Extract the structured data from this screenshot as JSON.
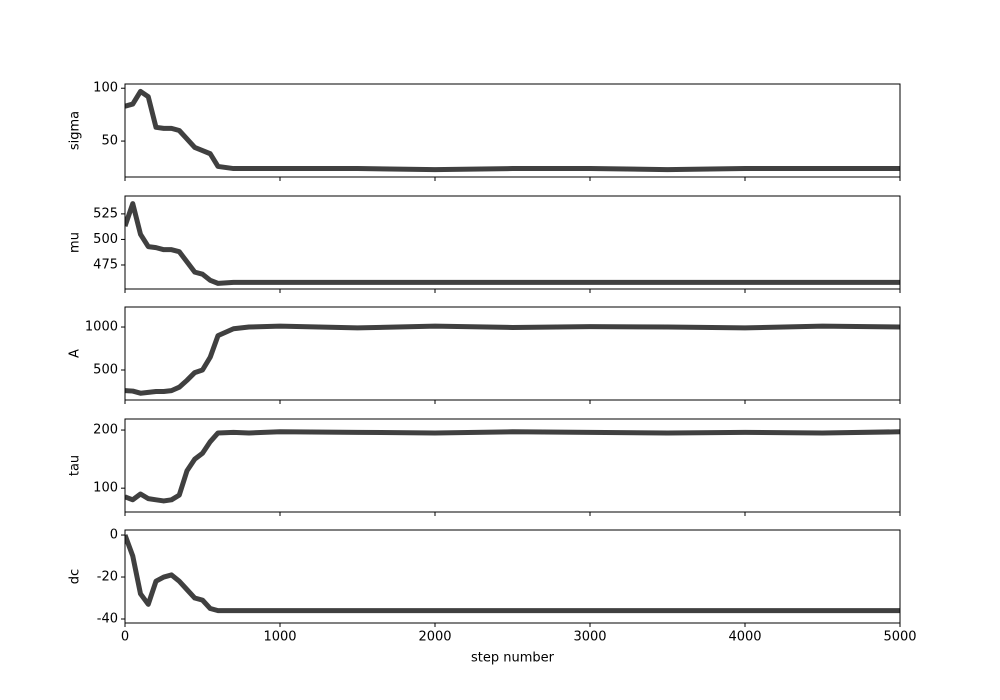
{
  "chart_data": [
    {
      "type": "line",
      "ylabel": "sigma",
      "color": "#000000",
      "xlim": [
        0,
        5000
      ],
      "ylim": [
        16,
        104
      ],
      "yticks": [
        50,
        100
      ],
      "x": [
        0,
        50,
        100,
        150,
        200,
        250,
        300,
        350,
        400,
        450,
        500,
        550,
        600,
        700,
        800,
        1000,
        1500,
        2000,
        2500,
        3000,
        3500,
        4000,
        4500,
        5000
      ],
      "values": [
        83,
        85,
        97,
        92,
        63,
        62,
        62,
        60,
        52,
        44,
        41,
        38,
        26,
        24,
        24,
        24,
        24,
        23,
        24,
        24,
        23,
        24,
        24,
        24
      ]
    },
    {
      "type": "line",
      "ylabel": "mu",
      "color": "#000000",
      "xlim": [
        0,
        5000
      ],
      "ylim": [
        451.5,
        542.5
      ],
      "yticks": [
        475,
        500,
        525
      ],
      "x": [
        0,
        50,
        100,
        150,
        200,
        250,
        300,
        350,
        400,
        450,
        500,
        550,
        600,
        700,
        800,
        1000,
        1500,
        2000,
        2500,
        3000,
        3500,
        4000,
        4500,
        5000
      ],
      "values": [
        513,
        535,
        505,
        493,
        492,
        490,
        490,
        488,
        478,
        468,
        466,
        460,
        457,
        458,
        458,
        458,
        458,
        458,
        458,
        458,
        458,
        458,
        458,
        458
      ]
    },
    {
      "type": "line",
      "ylabel": "A",
      "color": "#000000",
      "xlim": [
        0,
        5000
      ],
      "ylim": [
        151,
        1233
      ],
      "yticks": [
        500,
        1000
      ],
      "x": [
        0,
        50,
        100,
        150,
        200,
        250,
        300,
        350,
        400,
        450,
        500,
        550,
        600,
        700,
        800,
        1000,
        1500,
        2000,
        2500,
        3000,
        3500,
        4000,
        4500,
        5000
      ],
      "values": [
        260,
        255,
        230,
        240,
        250,
        250,
        260,
        300,
        380,
        470,
        500,
        650,
        900,
        980,
        1000,
        1010,
        990,
        1010,
        995,
        1005,
        1000,
        990,
        1010,
        1000
      ]
    },
    {
      "type": "line",
      "ylabel": "tau",
      "color": "#000000",
      "xlim": [
        0,
        5000
      ],
      "ylim": [
        59,
        219
      ],
      "yticks": [
        100,
        200
      ],
      "x": [
        0,
        50,
        100,
        150,
        200,
        250,
        300,
        350,
        400,
        450,
        500,
        550,
        600,
        700,
        800,
        1000,
        1500,
        2000,
        2500,
        3000,
        3500,
        4000,
        4500,
        5000
      ],
      "values": [
        85,
        80,
        90,
        82,
        80,
        78,
        80,
        88,
        130,
        150,
        160,
        180,
        195,
        196,
        195,
        197,
        196,
        195,
        197,
        196,
        195,
        196,
        195,
        197
      ]
    },
    {
      "type": "line",
      "ylabel": "dc",
      "xlabel": "step number",
      "color": "#000000",
      "xlim": [
        0,
        5000
      ],
      "ylim": [
        -41.9,
        2.4
      ],
      "yticks": [
        -40,
        -20,
        0
      ],
      "xticks": [
        0,
        1000,
        2000,
        3000,
        4000,
        5000
      ],
      "x": [
        0,
        50,
        100,
        150,
        200,
        250,
        300,
        350,
        400,
        450,
        500,
        550,
        600,
        700,
        800,
        1000,
        1500,
        2000,
        2500,
        3000,
        3500,
        4000,
        4500,
        5000
      ],
      "values": [
        0,
        -10,
        -28,
        -33,
        -22,
        -20,
        -19,
        -22,
        -26,
        -30,
        -31,
        -35,
        -36,
        -36,
        -36,
        -36,
        -36,
        -36,
        -36,
        -36,
        -36,
        -36,
        -36,
        -36
      ]
    }
  ]
}
